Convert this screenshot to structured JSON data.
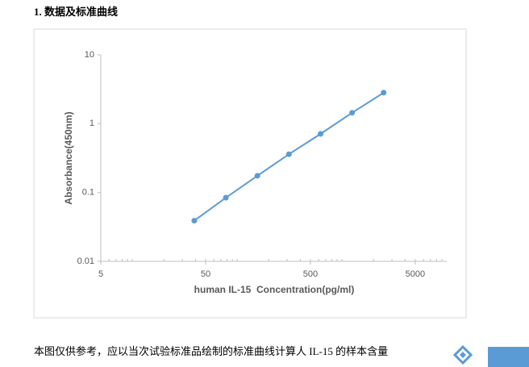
{
  "heading": "1. 数据及标准曲线",
  "chart_data": {
    "type": "line",
    "x_label": "human IL-15  Concentration(pg/ml)",
    "y_label": "Absorbance(450nm)",
    "x": [
      39,
      78,
      156,
      312,
      625,
      1250,
      2500
    ],
    "series": [
      {
        "color": "#5b9bd5",
        "values": [
          0.039,
          0.084,
          0.175,
          0.36,
          0.71,
          1.44,
          2.82
        ]
      }
    ],
    "xlim": [
      5,
      10000
    ],
    "ylim": [
      0.01,
      10
    ],
    "xticks": [
      5,
      50,
      500,
      5000
    ],
    "yticks": [
      0.01,
      0.1,
      1,
      10
    ],
    "xlog": true,
    "ylog": true,
    "grid": false
  },
  "caption": "本图仅供参考，应以当次试验标准品绘制的标准曲线计算人 IL-15 的样本含量"
}
